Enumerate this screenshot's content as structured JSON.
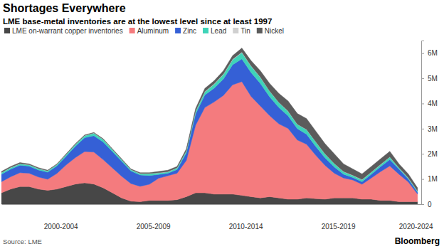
{
  "chart_data": {
    "type": "area",
    "title": "Shortages Everywhere",
    "subtitle": "LME base-metal inventories are at the lowest level since at least 1997",
    "source": "Source: LME",
    "credit": "Bloomberg",
    "stacked": true,
    "grid": false,
    "legend": "top",
    "x": [
      1999.3,
      1999.8,
      2000.3,
      2000.8,
      2001.3,
      2001.8,
      2002.3,
      2002.8,
      2003.3,
      2003.8,
      2004.3,
      2004.8,
      2005.3,
      2005.8,
      2006.3,
      2006.8,
      2007.3,
      2007.8,
      2008.3,
      2008.8,
      2009.3,
      2009.8,
      2010.3,
      2010.8,
      2011.3,
      2011.8,
      2012.3,
      2012.8,
      2013.3,
      2013.8,
      2014.3,
      2014.8,
      2015.3,
      2015.8,
      2016.3,
      2016.8,
      2017.3,
      2017.8,
      2018.3,
      2018.8,
      2019.3,
      2019.8,
      2020.3,
      2020.8,
      2021.3,
      2021.8
    ],
    "series": [
      {
        "name": "LME on-warrant copper inventories",
        "color": "#474747",
        "values": [
          0.45,
          0.6,
          0.7,
          0.7,
          0.6,
          0.55,
          0.6,
          0.7,
          0.8,
          0.85,
          0.8,
          0.65,
          0.45,
          0.25,
          0.12,
          0.1,
          0.15,
          0.15,
          0.15,
          0.18,
          0.3,
          0.45,
          0.45,
          0.4,
          0.4,
          0.4,
          0.35,
          0.3,
          0.25,
          0.3,
          0.25,
          0.2,
          0.2,
          0.25,
          0.22,
          0.2,
          0.25,
          0.25,
          0.25,
          0.2,
          0.2,
          0.15,
          0.15,
          0.1,
          0.1,
          0.1
        ]
      },
      {
        "name": "Aluminum",
        "color": "#f47b7e",
        "values": [
          0.44,
          0.49,
          0.55,
          0.53,
          0.48,
          0.44,
          0.62,
          0.86,
          1.05,
          1.24,
          1.27,
          1.12,
          0.99,
          0.86,
          0.7,
          0.61,
          0.64,
          0.88,
          0.98,
          1.05,
          1.44,
          2.69,
          3.39,
          3.66,
          3.92,
          4.34,
          4.52,
          3.98,
          3.65,
          3.22,
          2.94,
          2.81,
          2.35,
          2.13,
          1.72,
          1.34,
          0.98,
          0.79,
          0.71,
          0.59,
          0.84,
          1.14,
          1.37,
          1.09,
          0.78,
          0.3
        ]
      },
      {
        "name": "Zinc",
        "color": "#3560d6",
        "values": [
          0.3,
          0.3,
          0.3,
          0.28,
          0.28,
          0.28,
          0.3,
          0.35,
          0.45,
          0.55,
          0.65,
          0.7,
          0.65,
          0.6,
          0.5,
          0.45,
          0.35,
          0.15,
          0.1,
          0.15,
          0.3,
          0.45,
          0.5,
          0.55,
          0.65,
          0.8,
          0.9,
          0.95,
          0.9,
          0.75,
          0.65,
          0.5,
          0.45,
          0.4,
          0.35,
          0.3,
          0.25,
          0.15,
          0.1,
          0.1,
          0.15,
          0.2,
          0.25,
          0.2,
          0.12,
          0.08
        ]
      },
      {
        "name": "Lead",
        "color": "#3fd4b8",
        "values": [
          0.06,
          0.06,
          0.05,
          0.05,
          0.05,
          0.05,
          0.05,
          0.06,
          0.07,
          0.08,
          0.1,
          0.1,
          0.08,
          0.06,
          0.05,
          0.05,
          0.07,
          0.06,
          0.05,
          0.06,
          0.08,
          0.1,
          0.12,
          0.15,
          0.18,
          0.2,
          0.25,
          0.25,
          0.24,
          0.22,
          0.2,
          0.18,
          0.17,
          0.18,
          0.18,
          0.15,
          0.13,
          0.1,
          0.08,
          0.08,
          0.08,
          0.08,
          0.1,
          0.05,
          0.04,
          0.04
        ]
      },
      {
        "name": "Tin",
        "color": "#d0d0d0",
        "values": [
          0.01,
          0.01,
          0.01,
          0.01,
          0.01,
          0.01,
          0.01,
          0.01,
          0.01,
          0.01,
          0.01,
          0.01,
          0.01,
          0.01,
          0.01,
          0.01,
          0.01,
          0.01,
          0.01,
          0.01,
          0.01,
          0.01,
          0.02,
          0.02,
          0.02,
          0.02,
          0.02,
          0.02,
          0.01,
          0.01,
          0.01,
          0.01,
          0.01,
          0.01,
          0.01,
          0.01,
          0.01,
          0.01,
          0.01,
          0.01,
          0.01,
          0.01,
          0.01,
          0.01,
          0.01,
          0.01
        ]
      },
      {
        "name": "Nickel",
        "color": "#5c5c5c",
        "values": [
          0.04,
          0.04,
          0.04,
          0.03,
          0.03,
          0.02,
          0.02,
          0.02,
          0.02,
          0.02,
          0.02,
          0.02,
          0.02,
          0.02,
          0.02,
          0.03,
          0.03,
          0.05,
          0.06,
          0.05,
          0.07,
          0.1,
          0.12,
          0.12,
          0.13,
          0.14,
          0.16,
          0.2,
          0.25,
          0.3,
          0.35,
          0.4,
          0.42,
          0.43,
          0.42,
          0.4,
          0.38,
          0.3,
          0.25,
          0.22,
          0.22,
          0.22,
          0.22,
          0.15,
          0.15,
          0.12
        ]
      }
    ],
    "xlim": [
      1999.3,
      2022.0
    ],
    "xticks": [
      {
        "value": 2002.5,
        "label": "2000-2004"
      },
      {
        "value": 2007.5,
        "label": "2005-2009"
      },
      {
        "value": 2012.5,
        "label": "2010-2014"
      },
      {
        "value": 2017.5,
        "label": "2015-2019"
      },
      {
        "value": 2021.7,
        "label": "2020-2024"
      }
    ],
    "ylim": [
      0,
      6.5
    ],
    "yticks": [
      0,
      {
        "value": 1,
        "label": "1M"
      },
      {
        "value": 2,
        "label": "2M"
      },
      {
        "value": 3,
        "label": "3M"
      },
      {
        "value": 4,
        "label": "4M"
      },
      {
        "value": 5,
        "label": "5M"
      },
      {
        "value": 6,
        "label": "6M"
      }
    ]
  }
}
